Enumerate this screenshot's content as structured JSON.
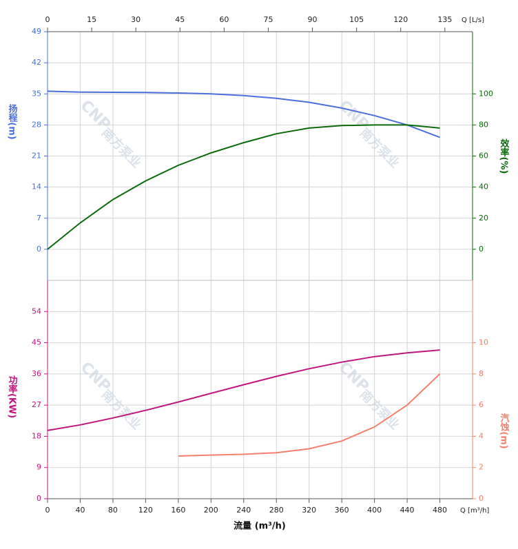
{
  "chart_data": [
    {
      "type": "line",
      "x": [
        0,
        40,
        80,
        120,
        160,
        200,
        240,
        280,
        320,
        360,
        400,
        440,
        480
      ],
      "xlim": [
        0,
        520
      ],
      "x2label": "Q [L/s]",
      "x2lim": [
        0,
        144.4
      ],
      "x2ticks": [
        0,
        15,
        30,
        45,
        60,
        75,
        90,
        105,
        120,
        135
      ],
      "ylim": [
        -7,
        49
      ],
      "yticks": [
        0,
        7,
        14,
        21,
        28,
        35,
        42,
        49
      ],
      "y2lim": [
        -20,
        140
      ],
      "y2ticks": [
        0,
        20,
        40,
        60,
        80,
        100
      ],
      "grid": true,
      "series": [
        {
          "name": "扬程(m)",
          "color": "#4a6fdc",
          "values": [
            35.6,
            35.4,
            35.35,
            35.3,
            35.2,
            35.0,
            34.6,
            34.0,
            33.1,
            31.8,
            30.1,
            28.0,
            25.2
          ]
        },
        {
          "name": "效率(%)",
          "color": "#0a6a0a",
          "axis": "y2",
          "values": [
            0,
            17,
            32,
            44,
            54,
            62,
            68.6,
            74.3,
            78,
            79.6,
            80,
            80,
            78
          ]
        }
      ]
    },
    {
      "type": "line",
      "x": [
        0,
        40,
        80,
        120,
        160,
        200,
        240,
        280,
        320,
        360,
        400,
        440,
        480
      ],
      "xlim": [
        0,
        520
      ],
      "xticks": [
        0,
        40,
        80,
        120,
        160,
        200,
        240,
        280,
        320,
        360,
        400,
        440,
        480
      ],
      "xlabel": "流量 (m³/h)",
      "xunit": "Q [m³/h]",
      "ylim": [
        0,
        63
      ],
      "yticks": [
        0,
        9,
        18,
        27,
        36,
        45,
        54
      ],
      "y2lim": [
        0,
        14
      ],
      "y2ticks": [
        0,
        2,
        4,
        6,
        8,
        10
      ],
      "grid": true,
      "series": [
        {
          "name": "功率(KW)",
          "color": "#c0157e",
          "values": [
            19.7,
            21.3,
            23.3,
            25.5,
            27.9,
            30.4,
            32.9,
            35.3,
            37.5,
            39.4,
            41.0,
            42.1,
            42.9
          ]
        },
        {
          "name": "汽蚀(m)",
          "color": "#f4806c",
          "axis": "y2",
          "values": [
            null,
            null,
            null,
            null,
            2.74,
            2.8,
            2.85,
            2.95,
            3.2,
            3.7,
            4.6,
            6.0,
            8.0
          ]
        }
      ]
    }
  ],
  "watermark": {
    "logo": "CNP",
    "name": "南方泵业"
  }
}
